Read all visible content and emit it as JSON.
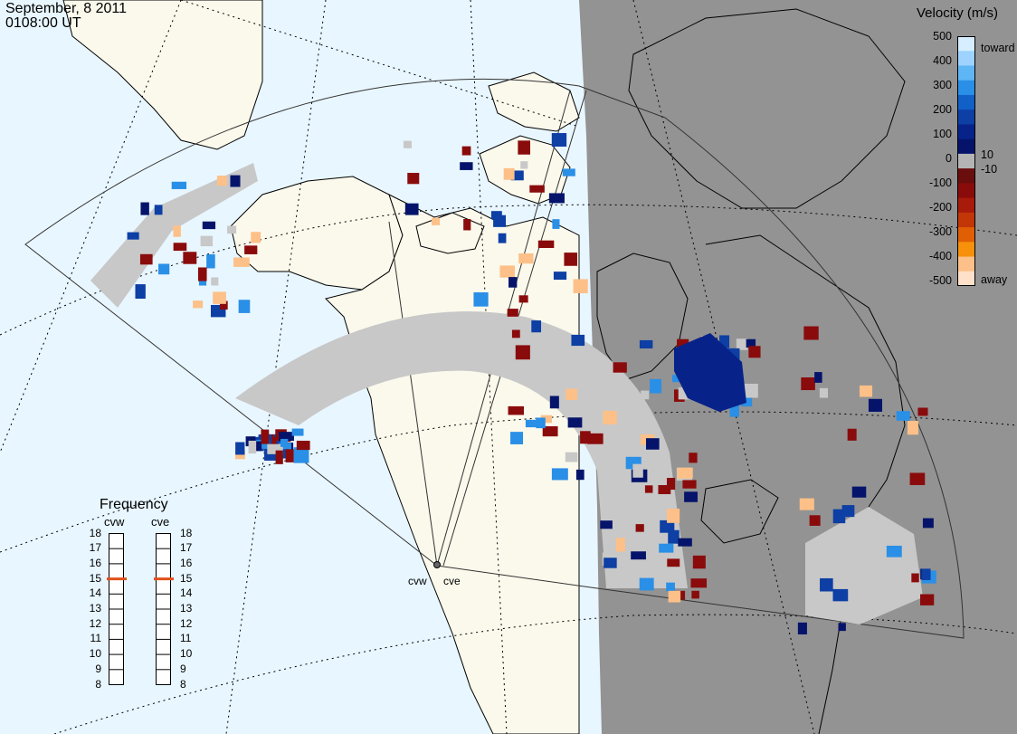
{
  "title": {
    "date": "September, 8 2011",
    "time": "0108:00 UT"
  },
  "radars": [
    {
      "id": "cvw",
      "label": "cvw"
    },
    {
      "id": "cve",
      "label": "cve"
    }
  ],
  "colorbar": {
    "title": "Velocity (m/s)",
    "ticks_left": [
      "500",
      "400",
      "300",
      "200",
      "100",
      "0",
      "-100",
      "-200",
      "-300",
      "-400",
      "-500"
    ],
    "ticks_right": [
      "10",
      "-10"
    ],
    "toward_label": "toward",
    "away_label": "away",
    "colors_top_to_bottom": [
      "#d6eeff",
      "#9ed3ff",
      "#5fb6f5",
      "#2a8fe6",
      "#1060c8",
      "#0d3fa4",
      "#07238a",
      "#05146a",
      "#b4b4b4",
      "#6a0d0d",
      "#8a0b0b",
      "#a81a0a",
      "#c23608",
      "#e05e04",
      "#f7900a",
      "#fdc088",
      "#ffe0c8"
    ]
  },
  "frequency": {
    "title": "Frequency",
    "radar_left": "cvw",
    "radar_right": "cve",
    "scale": [
      "18",
      "17",
      "16",
      "15",
      "14",
      "13",
      "12",
      "11",
      "10",
      "9",
      "8"
    ],
    "cvw_mhz": 15,
    "cve_mhz": 15,
    "marker_color": "#e0501a"
  },
  "colors": {
    "ocean": "#e8f6ff",
    "land": "#fbf9ec",
    "night": "#939393",
    "ground_scatter": "#c8c8c8"
  }
}
